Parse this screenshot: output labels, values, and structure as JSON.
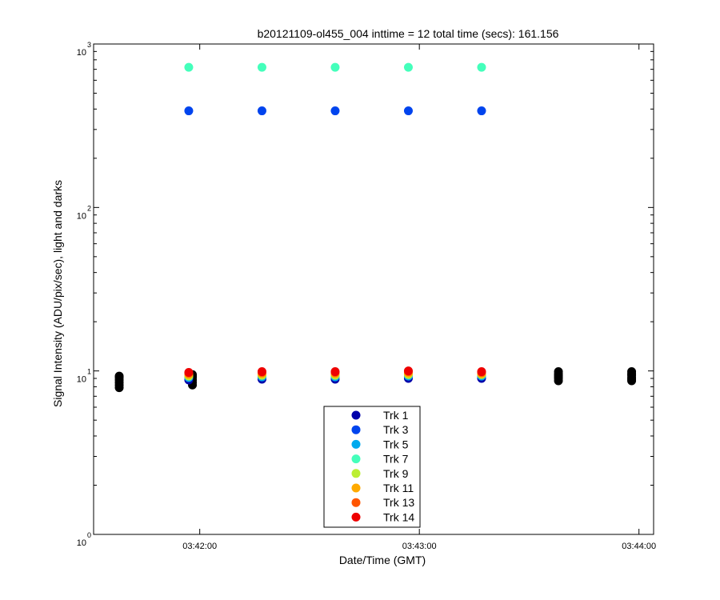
{
  "chart_data": {
    "type": "scatter",
    "title": "b20121109-ol455_004 inttime = 12 total time (secs): 161.156",
    "xlabel": "Date/Time (GMT)",
    "ylabel": "Signal Intensity (ADU/pix/sec), light and darks",
    "y_scale": "log",
    "ylim": [
      1,
      1000
    ],
    "xlim": [
      "03:41:31",
      "03:44:04"
    ],
    "x_ticks": [
      "03:42:00",
      "03:43:00",
      "03:44:00"
    ],
    "y_ticks": [
      {
        "value": 1,
        "base": "10",
        "exp": "0"
      },
      {
        "value": 10,
        "base": "10",
        "exp": "1"
      },
      {
        "value": 100,
        "base": "10",
        "exp": "2"
      },
      {
        "value": 1000,
        "base": "10",
        "exp": "3"
      }
    ],
    "grid": false,
    "legend_position": "bottom-center",
    "series": [
      {
        "name": "Trk 1",
        "color": "#0000aa",
        "x": [
          "03:41:57",
          "03:42:17",
          "03:42:37",
          "03:42:57",
          "03:43:17"
        ],
        "y": [
          8.8,
          8.9,
          8.9,
          9.0,
          9.0
        ]
      },
      {
        "name": "Trk 3",
        "color": "#0044ee",
        "x": [
          "03:41:57",
          "03:42:17",
          "03:42:37",
          "03:42:57",
          "03:43:17"
        ],
        "y": [
          390,
          390,
          390,
          390,
          390
        ]
      },
      {
        "name": "Trk 5",
        "color": "#00aaee",
        "x": [
          "03:41:57",
          "03:42:17",
          "03:42:37",
          "03:42:57",
          "03:43:17"
        ],
        "y": [
          9.1,
          9.2,
          9.2,
          9.3,
          9.3
        ]
      },
      {
        "name": "Trk 7",
        "color": "#44ffbb",
        "x": [
          "03:41:57",
          "03:42:17",
          "03:42:37",
          "03:42:57",
          "03:43:17"
        ],
        "y": [
          720,
          720,
          720,
          720,
          720
        ]
      },
      {
        "name": "Trk 9",
        "color": "#bbee33",
        "x": [
          "03:41:57",
          "03:42:17",
          "03:42:37",
          "03:42:57",
          "03:43:17"
        ],
        "y": [
          9.3,
          9.4,
          9.4,
          9.5,
          9.5
        ]
      },
      {
        "name": "Trk 11",
        "color": "#ffaa00",
        "x": [
          "03:41:57",
          "03:42:17",
          "03:42:37",
          "03:42:57",
          "03:43:17"
        ],
        "y": [
          9.5,
          9.6,
          9.6,
          9.7,
          9.6
        ]
      },
      {
        "name": "Trk 13",
        "color": "#ff5500",
        "x": [
          "03:41:57",
          "03:42:17",
          "03:42:37",
          "03:42:57",
          "03:43:17"
        ],
        "y": [
          9.7,
          9.8,
          9.8,
          9.9,
          9.8
        ]
      },
      {
        "name": "Trk 14",
        "color": "#ee0000",
        "x": [
          "03:41:57",
          "03:42:17",
          "03:42:37",
          "03:42:57",
          "03:43:17"
        ],
        "y": [
          9.8,
          9.9,
          9.9,
          10.0,
          9.9
        ]
      }
    ],
    "darks": {
      "color": "#000000",
      "x": [
        "03:41:38",
        "03:41:38",
        "03:41:38",
        "03:41:38",
        "03:41:38",
        "03:41:38",
        "03:41:58",
        "03:41:58",
        "03:41:58",
        "03:41:58",
        "03:41:58",
        "03:41:58",
        "03:43:38",
        "03:43:38",
        "03:43:38",
        "03:43:38",
        "03:43:38",
        "03:43:38",
        "03:43:58",
        "03:43:58",
        "03:43:58",
        "03:43:58",
        "03:43:58",
        "03:43:58"
      ],
      "y": [
        7.9,
        8.2,
        8.5,
        8.8,
        9.1,
        9.3,
        8.2,
        8.5,
        8.8,
        9.1,
        9.3,
        9.5,
        8.7,
        9.0,
        9.2,
        9.4,
        9.6,
        9.9,
        8.7,
        8.9,
        9.1,
        9.4,
        9.6,
        9.9
      ]
    }
  }
}
